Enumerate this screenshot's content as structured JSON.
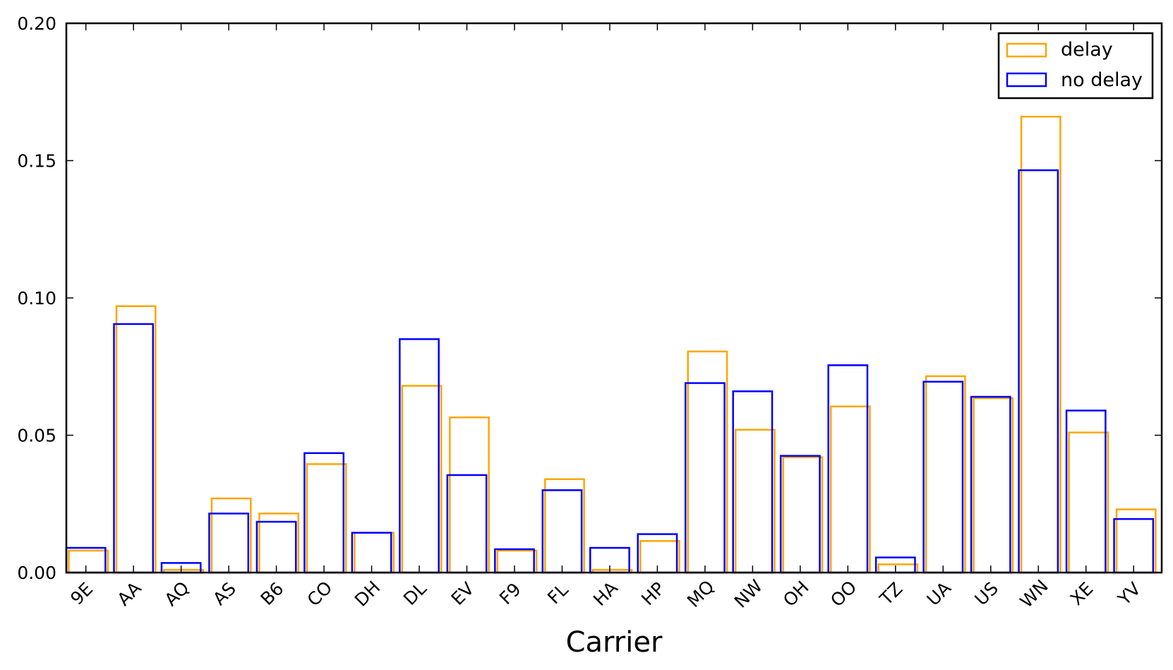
{
  "chart_data": {
    "type": "bar",
    "title": "",
    "xlabel": "Carrier",
    "ylabel": "",
    "ylim": [
      0,
      0.2
    ],
    "yticks": [
      "0.00",
      "0.05",
      "0.10",
      "0.15",
      "0.20"
    ],
    "grid": false,
    "legend_position": "top-right",
    "categories": [
      "9E",
      "AA",
      "AQ",
      "AS",
      "B6",
      "CO",
      "DH",
      "DL",
      "EV",
      "F9",
      "FL",
      "HA",
      "HP",
      "MQ",
      "NW",
      "OH",
      "OO",
      "TZ",
      "UA",
      "US",
      "WN",
      "XE",
      "YV"
    ],
    "series": [
      {
        "name": "delay",
        "color": "#FFA500",
        "values": [
          0.008,
          0.097,
          0.001,
          0.027,
          0.0215,
          0.0395,
          0.0145,
          0.068,
          0.0565,
          0.008,
          0.034,
          0.001,
          0.0115,
          0.0805,
          0.052,
          0.042,
          0.0605,
          0.003,
          0.0715,
          0.0635,
          0.166,
          0.051,
          0.023
        ]
      },
      {
        "name": "no delay",
        "color": "#0000FF",
        "values": [
          0.009,
          0.0905,
          0.0035,
          0.0215,
          0.0185,
          0.0435,
          0.0145,
          0.085,
          0.0355,
          0.0085,
          0.03,
          0.009,
          0.014,
          0.069,
          0.066,
          0.0425,
          0.0755,
          0.0055,
          0.0695,
          0.064,
          0.1465,
          0.059,
          0.0195
        ]
      }
    ]
  }
}
